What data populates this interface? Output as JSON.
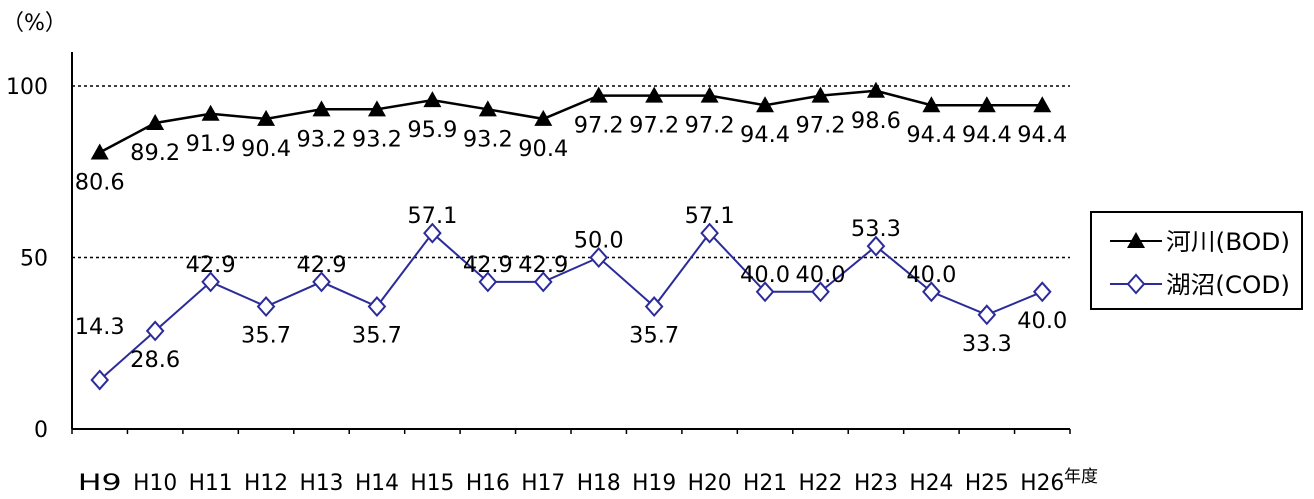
{
  "chart_data": {
    "type": "line",
    "y_unit_label": "（%）",
    "x_unit_label": "年度",
    "categories": [
      "H9",
      "H10",
      "H11",
      "H12",
      "H13",
      "H14",
      "H15",
      "H16",
      "H17",
      "H18",
      "H19",
      "H20",
      "H21",
      "H22",
      "H23",
      "H24",
      "H25",
      "H26"
    ],
    "ylim": [
      0,
      100
    ],
    "yticks": [
      "0",
      "50",
      "100"
    ],
    "grid": "dashed at 50 and 100",
    "legend": "right",
    "series": [
      {
        "name": "河川(BOD)",
        "marker": "filled-triangle",
        "color": "#000000",
        "values": [
          80.6,
          89.2,
          91.9,
          90.4,
          93.2,
          93.2,
          95.9,
          93.2,
          90.4,
          97.2,
          97.2,
          97.2,
          94.4,
          97.2,
          98.6,
          94.4,
          94.4,
          94.4
        ],
        "labels": [
          "80.6",
          "89.2",
          "91.9",
          "90.4",
          "93.2",
          "93.2",
          "95.9",
          "93.2",
          "90.4",
          "97.2",
          "97.2",
          "97.2",
          "94.4",
          "97.2",
          "98.6",
          "94.4",
          "94.4",
          "94.4"
        ]
      },
      {
        "name": "湖沼(COD)",
        "marker": "open-diamond",
        "color": "#2b2b9a",
        "values": [
          14.3,
          28.6,
          42.9,
          35.7,
          42.9,
          35.7,
          57.1,
          42.9,
          42.9,
          50.0,
          35.7,
          57.1,
          40.0,
          40.0,
          53.3,
          40.0,
          33.3,
          40.0
        ],
        "labels": [
          "14.3",
          "28.6",
          "42.9",
          "35.7",
          "42.9",
          "35.7",
          "57.1",
          "42.9",
          "42.9",
          "50.0",
          "35.7",
          "57.1",
          "40.0",
          "40.0",
          "53.3",
          "40.0",
          "33.3",
          "40.0"
        ]
      }
    ]
  }
}
